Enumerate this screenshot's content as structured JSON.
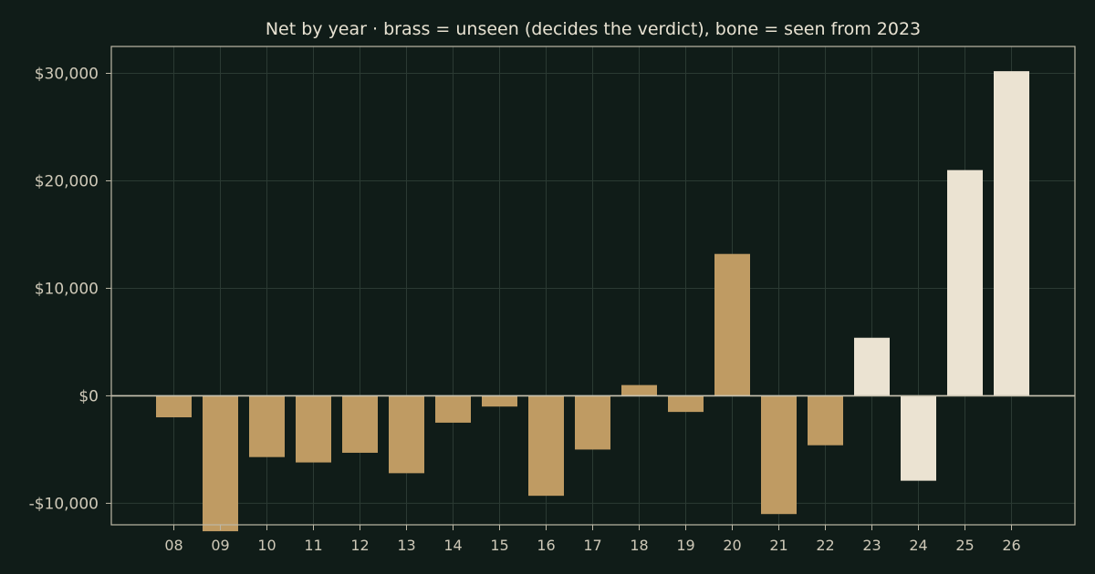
{
  "chart_data": {
    "type": "bar",
    "title": "Net by year  ·  brass = unseen (decides the verdict), bone = seen from 2023",
    "xlabel": "",
    "ylabel": "",
    "categories": [
      "08",
      "09",
      "10",
      "11",
      "12",
      "13",
      "14",
      "15",
      "16",
      "17",
      "18",
      "19",
      "20",
      "21",
      "22",
      "23",
      "24",
      "25",
      "26"
    ],
    "values": [
      -2000,
      -12600,
      -5700,
      -6200,
      -5300,
      -7200,
      -2500,
      -1000,
      -9300,
      -5000,
      1000,
      -1500,
      13200,
      -11000,
      -4600,
      5400,
      -7900,
      21000,
      30200
    ],
    "groups": [
      "unseen",
      "unseen",
      "unseen",
      "unseen",
      "unseen",
      "unseen",
      "unseen",
      "unseen",
      "unseen",
      "unseen",
      "unseen",
      "unseen",
      "unseen",
      "unseen",
      "unseen",
      "seen",
      "seen",
      "seen",
      "seen"
    ],
    "group_colors": {
      "unseen": "#bf9b63",
      "seen": "#ebe3d2"
    },
    "ylim": [
      -12000,
      32500
    ],
    "yticks": [
      -10000,
      0,
      10000,
      20000,
      30000
    ],
    "ytick_labels": [
      "-$10,000",
      "$0",
      "$10,000",
      "$20,000",
      "$30,000"
    ],
    "grid": true,
    "legend": "none"
  },
  "colors": {
    "background": "#101c18",
    "axis": "#bdb8a6",
    "grid": "#2b3a33",
    "zero_line": "#c9c3b1"
  }
}
